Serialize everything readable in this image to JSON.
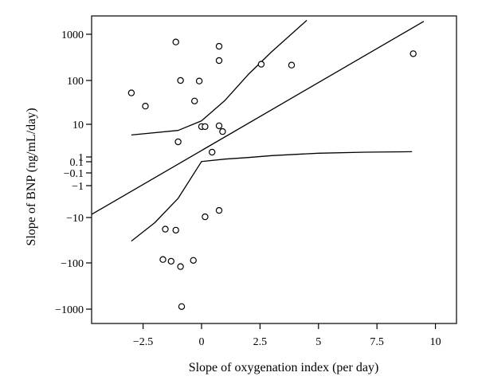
{
  "chart_data": {
    "type": "scatter",
    "title": "",
    "xlabel": "Slope of oxygenation index (per day)",
    "ylabel": "Slope of BNP (ng/mL/day)",
    "x_ticks": [
      "−2.5",
      "0",
      "2.5",
      "5",
      "7.5",
      "10"
    ],
    "x_tick_values": [
      -2.5,
      0,
      2.5,
      5,
      7.5,
      10
    ],
    "y_ticks": [
      "1000",
      "100",
      "10",
      "1",
      "0.1",
      "−0.1",
      "−1",
      "−10",
      "−100",
      "−1000"
    ],
    "y_tick_values": [
      1000,
      100,
      10,
      1,
      0.1,
      -0.1,
      -1,
      -10,
      -100,
      -1000
    ],
    "xlim": [
      -4.7,
      10.9
    ],
    "y_scale": "signed-log",
    "grid": false,
    "legend": "none",
    "points": [
      {
        "x": -3.0,
        "y": 52
      },
      {
        "x": -2.4,
        "y": 26
      },
      {
        "x": -1.1,
        "y": 680
      },
      {
        "x": -1.0,
        "y": 2.9
      },
      {
        "x": -0.9,
        "y": 100
      },
      {
        "x": -0.3,
        "y": 34
      },
      {
        "x": -0.1,
        "y": 97
      },
      {
        "x": 0.0,
        "y": 8.5
      },
      {
        "x": 0.15,
        "y": 8.5
      },
      {
        "x": 0.75,
        "y": 9.0
      },
      {
        "x": 0.45,
        "y": 1.4
      },
      {
        "x": 0.9,
        "y": 6.0
      },
      {
        "x": 0.75,
        "y": 550
      },
      {
        "x": 0.75,
        "y": 270
      },
      {
        "x": 2.55,
        "y": 225
      },
      {
        "x": 3.85,
        "y": 215
      },
      {
        "x": 9.05,
        "y": 380
      },
      {
        "x": 0.15,
        "y": -9.5
      },
      {
        "x": 0.75,
        "y": -6.0
      },
      {
        "x": -1.55,
        "y": -18
      },
      {
        "x": -1.1,
        "y": -19
      },
      {
        "x": -1.65,
        "y": -84
      },
      {
        "x": -1.3,
        "y": -92
      },
      {
        "x": -0.9,
        "y": -120
      },
      {
        "x": -0.35,
        "y": -88
      },
      {
        "x": -0.85,
        "y": -880
      }
    ],
    "lines": [
      {
        "name": "",
        "x": [
          -4.7,
          9.5
        ],
        "y": [
          -8,
          1900
        ]
      },
      {
        "name": "",
        "x": [
          -3.0,
          -1.0,
          0.0,
          1.0,
          2.0,
          3.0,
          4.5
        ],
        "y": [
          4.7,
          6.5,
          12,
          35,
          135,
          420,
          2000
        ]
      },
      {
        "name": "",
        "x": [
          -3.0,
          -2.0,
          -1.0,
          0.0,
          1.0,
          2.0,
          3.0,
          5.0,
          7.0,
          9.0
        ],
        "y": [
          -33,
          -13,
          -2.5,
          0.15,
          0.6,
          0.9,
          1.1,
          1.3,
          1.4,
          1.45
        ]
      }
    ]
  }
}
